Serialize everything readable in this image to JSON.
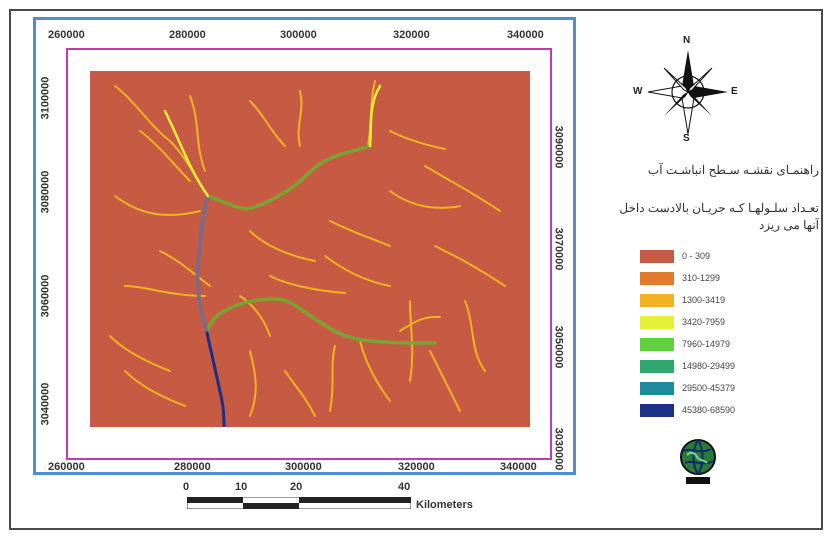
{
  "map": {
    "x_ticks_top": [
      "260000",
      "280000",
      "300000",
      "320000",
      "340000"
    ],
    "x_ticks_bottom": [
      "260000",
      "280000",
      "300000",
      "320000",
      "340000"
    ],
    "y_ticks_left": [
      "3100000",
      "3080000",
      "3060000",
      "3040000"
    ],
    "y_ticks_right": [
      "3090000",
      "3070000",
      "3050000",
      "3030000"
    ],
    "background_color": "#c65a43"
  },
  "north_arrow": {
    "n": "N",
    "s": "S",
    "e": "E",
    "w": "W"
  },
  "legend": {
    "title": "راهنمـای نقشـه سـطح انباشـت آب",
    "subtitle": "تعـداد سلـولهـا کـه جریـان بالادست داخل آنها می ریزد",
    "items": [
      {
        "label": "0 - 309",
        "color": "#c65a43"
      },
      {
        "label": "310-1299",
        "color": "#e07a2c"
      },
      {
        "label": "1300-3419",
        "color": "#f0b323"
      },
      {
        "label": "3420-7959",
        "color": "#e6ef3a"
      },
      {
        "label": "7960-14979",
        "color": "#5fcf3c"
      },
      {
        "label": "14980-29499",
        "color": "#2fa870"
      },
      {
        "label": "29500-45379",
        "color": "#1e8a9a"
      },
      {
        "label": "45380-68590",
        "color": "#1b2f86"
      }
    ]
  },
  "scale": {
    "ticks": [
      "0",
      "10",
      "20",
      "40"
    ],
    "unit": "Kilometers"
  }
}
